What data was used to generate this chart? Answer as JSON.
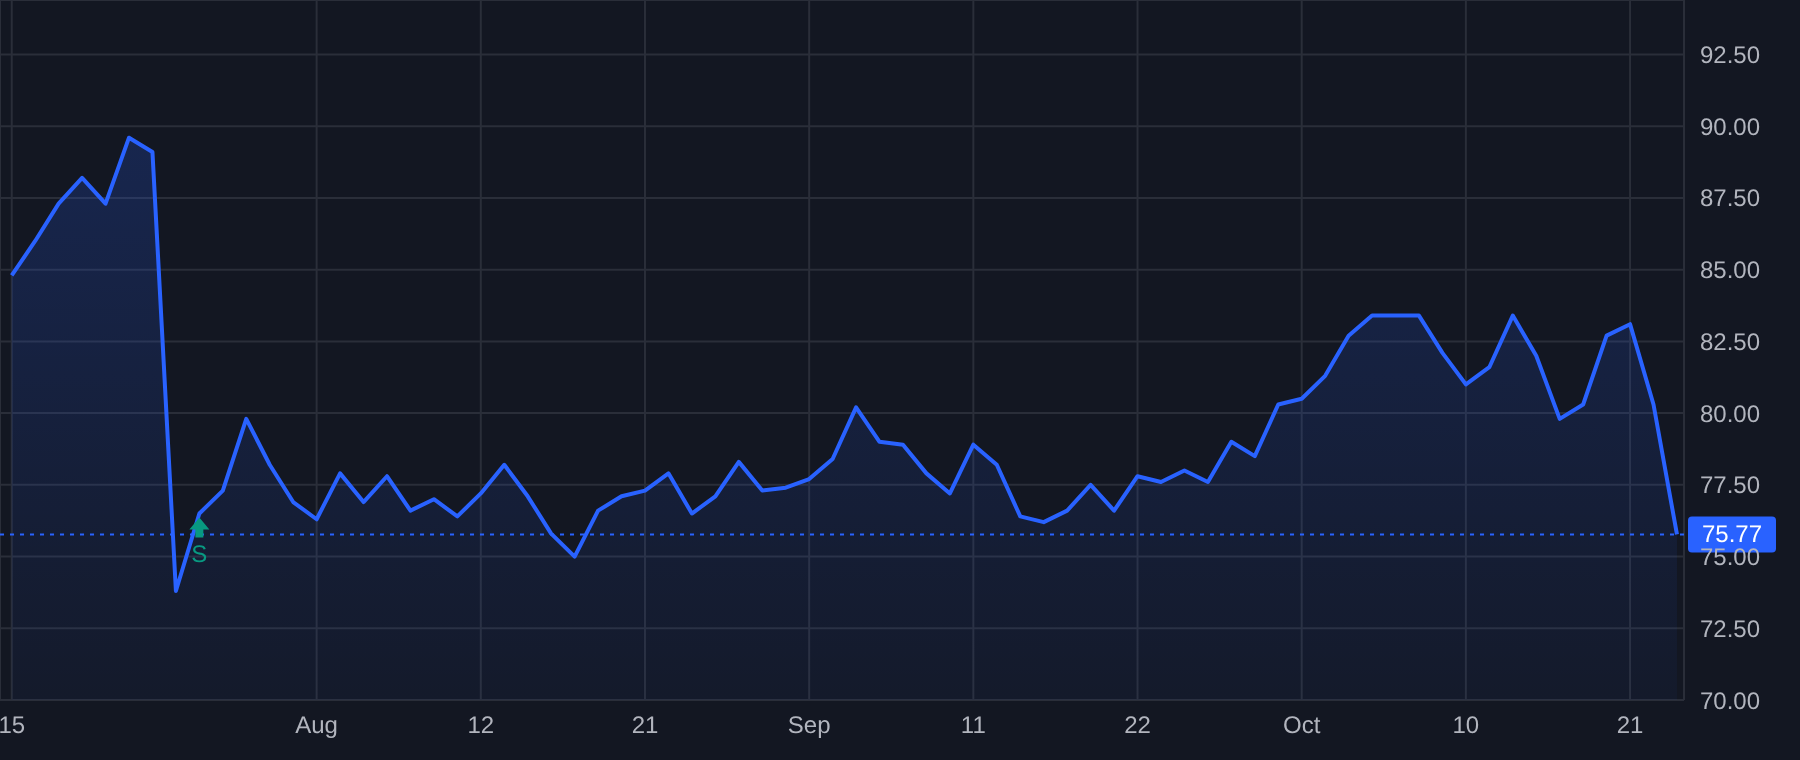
{
  "chart_data": {
    "type": "area",
    "categories": [
      "15",
      null,
      null,
      null,
      null,
      null,
      null,
      null,
      null,
      null,
      null,
      null,
      null,
      "Aug",
      null,
      null,
      null,
      null,
      null,
      null,
      "12",
      null,
      null,
      null,
      null,
      null,
      null,
      "21",
      null,
      null,
      null,
      null,
      null,
      null,
      "Sep",
      null,
      null,
      null,
      null,
      null,
      null,
      "11",
      null,
      null,
      null,
      null,
      null,
      null,
      "22",
      null,
      null,
      null,
      null,
      null,
      null,
      "Oct",
      null,
      null,
      null,
      null,
      null,
      null,
      "10",
      null,
      null,
      null,
      null,
      null,
      null,
      "21",
      null,
      null
    ],
    "series": [
      {
        "color": "#2962ff",
        "values": [
          84.8,
          86.0,
          87.3,
          88.2,
          87.3,
          89.6,
          89.1,
          73.8,
          76.5,
          77.3,
          79.8,
          78.2,
          76.9,
          76.3,
          77.9,
          76.9,
          77.8,
          76.6,
          77.0,
          76.4,
          77.2,
          78.2,
          77.1,
          75.8,
          75.0,
          76.6,
          77.1,
          77.3,
          77.9,
          76.5,
          77.1,
          78.3,
          77.3,
          77.4,
          77.7,
          78.4,
          80.2,
          79.0,
          78.9,
          77.9,
          77.2,
          78.9,
          78.2,
          76.4,
          76.2,
          76.6,
          77.5,
          76.6,
          77.8,
          77.6,
          78.0,
          77.6,
          79.0,
          78.5,
          80.3,
          80.5,
          81.3,
          82.7,
          83.4,
          83.4,
          83.4,
          82.1,
          81.0,
          81.6,
          83.4,
          82.0,
          79.8,
          80.3,
          82.7,
          83.1,
          80.3,
          75.77
        ]
      }
    ],
    "ylim": [
      70,
      94.4
    ],
    "yticks": [
      {
        "value": 70,
        "label": "70.00"
      },
      {
        "value": 72.5,
        "label": "72.50"
      },
      {
        "value": 75,
        "label": "75.00"
      },
      {
        "value": 77.5,
        "label": "77.50"
      },
      {
        "value": 80,
        "label": "80.00"
      },
      {
        "value": 82.5,
        "label": "82.50"
      },
      {
        "value": 85,
        "label": "85.00"
      },
      {
        "value": 87.5,
        "label": "87.50"
      },
      {
        "value": 90,
        "label": "90.00"
      },
      {
        "value": 92.5,
        "label": "92.50"
      }
    ],
    "ref_lines": [
      {
        "axis": "y",
        "value": 75.77,
        "label": "75.77",
        "color": "#2962ff",
        "line_style": "dotted"
      }
    ],
    "annotations": [
      {
        "text": "S",
        "y": 76.5
      }
    ],
    "grid": true
  }
}
